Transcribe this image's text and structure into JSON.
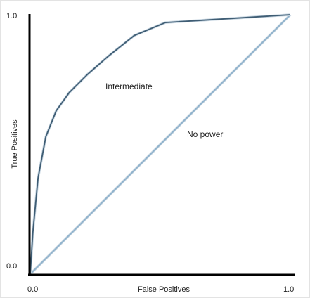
{
  "chart_data": {
    "type": "line",
    "title": "",
    "xlabel": "False Positives",
    "ylabel": "True Positives",
    "xlim": [
      0,
      1
    ],
    "ylim": [
      0,
      1
    ],
    "x_tick_labels": [
      "0.0",
      "1.0"
    ],
    "y_tick_labels": [
      "0.0",
      "1.0"
    ],
    "grid": false,
    "legend": "none",
    "series": [
      {
        "label": "Intermediate",
        "color": "#3f5d74",
        "x": [
          0,
          0.01,
          0.03,
          0.06,
          0.1,
          0.15,
          0.22,
          0.3,
          0.4,
          0.52,
          1.0
        ],
        "y": [
          0,
          0.16,
          0.37,
          0.53,
          0.63,
          0.7,
          0.77,
          0.84,
          0.92,
          0.97,
          1.0
        ]
      },
      {
        "label": "No power",
        "color": "#8fb2cc",
        "x": [
          0,
          1
        ],
        "y": [
          0,
          1
        ]
      }
    ]
  }
}
